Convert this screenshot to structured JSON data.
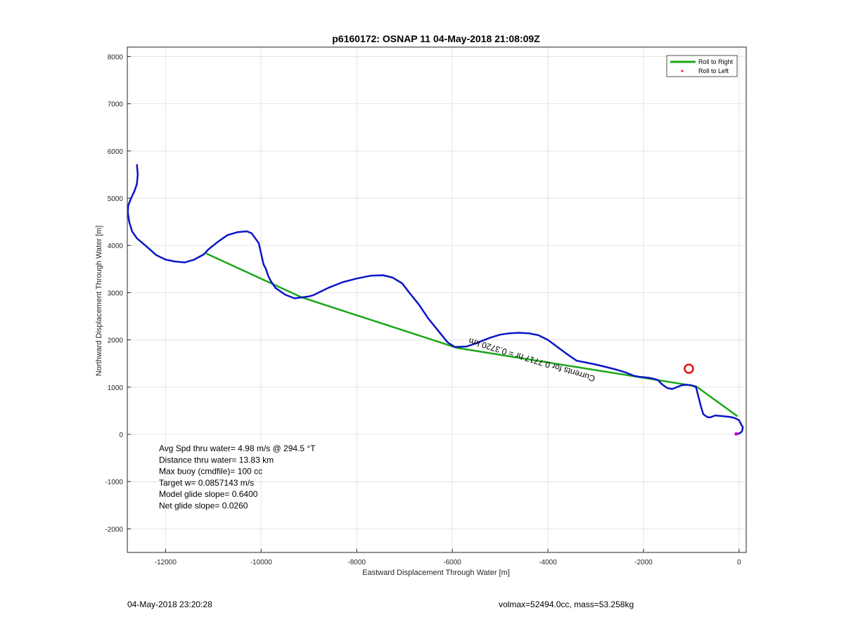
{
  "chart_data": {
    "type": "line",
    "title": "p6160172: OSNAP 11 04-May-2018 21:08:09Z",
    "xlabel": "Eastward Displacement Through Water [m]",
    "ylabel": "Northward Displacement Through Water [m]",
    "xlim": [
      -12800,
      150
    ],
    "ylim": [
      -2500,
      8200
    ],
    "xticks": [
      -12000,
      -10000,
      -8000,
      -6000,
      -4000,
      -2000,
      0
    ],
    "yticks": [
      -2000,
      -1000,
      0,
      1000,
      2000,
      3000,
      4000,
      5000,
      6000,
      7000,
      8000
    ],
    "grid": true,
    "legend_position": "top-right",
    "legend": [
      {
        "label": "Roll to Right",
        "color": "#1aa61a",
        "style": "line"
      },
      {
        "label": "Roll to Left",
        "color": "#e01010",
        "style": "dot"
      }
    ],
    "series": [
      {
        "color": "#0a14c8",
        "x": [
          -12600,
          -12580,
          -12600,
          -12650,
          -12720,
          -12780,
          -12790,
          -12760,
          -12700,
          -12600,
          -12400,
          -12200,
          -12000,
          -11800,
          -11600,
          -11400,
          -11200,
          -11100,
          -10900,
          -10700,
          -10500,
          -10300,
          -10200,
          -10050,
          -9950,
          -9900,
          -9850,
          -9800,
          -9700,
          -9500,
          -9300,
          -9150,
          -9000,
          -8900,
          -8600,
          -8300,
          -8000,
          -7700,
          -7450,
          -7250,
          -7050,
          -6900,
          -6700,
          -6500,
          -6300,
          -6100,
          -5950,
          -5700,
          -5500,
          -5200,
          -5000,
          -4800,
          -4600,
          -4400,
          -4200,
          -4000,
          -3800,
          -3600,
          -3400,
          -3200,
          -3000,
          -2800,
          -2600,
          -2400,
          -2200,
          -2100,
          -1900,
          -1800,
          -1700,
          -1600,
          -1500,
          -1400,
          -1300,
          -1200,
          -1100,
          -1000,
          -900,
          -850,
          -800,
          -750,
          -700,
          -650,
          -600,
          -550,
          -500,
          -400,
          -200,
          -100,
          0,
          50,
          80,
          60,
          20,
          -50,
          -80
        ],
        "y": [
          5720,
          5500,
          5300,
          5150,
          5000,
          4850,
          4700,
          4500,
          4300,
          4150,
          3980,
          3800,
          3700,
          3660,
          3640,
          3700,
          3810,
          3920,
          4080,
          4220,
          4280,
          4300,
          4260,
          4050,
          3600,
          3500,
          3350,
          3250,
          3100,
          2960,
          2880,
          2900,
          2920,
          2950,
          3100,
          3220,
          3300,
          3360,
          3370,
          3320,
          3200,
          3000,
          2750,
          2450,
          2200,
          1950,
          1850,
          1860,
          1930,
          2050,
          2110,
          2140,
          2150,
          2140,
          2100,
          2000,
          1850,
          1700,
          1560,
          1520,
          1480,
          1430,
          1380,
          1320,
          1240,
          1220,
          1200,
          1180,
          1150,
          1050,
          980,
          960,
          1000,
          1040,
          1050,
          1040,
          1000,
          800,
          600,
          430,
          390,
          360,
          360,
          380,
          400,
          390,
          370,
          350,
          300,
          200,
          150,
          60,
          30,
          0,
          10
        ]
      },
      {
        "name": "Roll to Right",
        "color": "#1aa61a",
        "x": [
          -11150,
          -9150,
          -5900,
          -900,
          -30
        ],
        "y": [
          3830,
          2900,
          1830,
          1020,
          380
        ]
      }
    ],
    "marker": {
      "x": -1050,
      "y": 1390,
      "color": "#e01010"
    },
    "current_label": "Currents for 0.7717 hr = 0.3720 km",
    "stats": [
      "Avg Spd thru water=  4.98 m/s @ 294.5 °T",
      "Distance thru water= 13.83 km",
      "Max buoy (cmdfile)= 100 cc",
      "Target w= 0.0857143 m/s",
      "Model glide slope= 0.6400",
      "Net glide slope= 0.0260"
    ]
  },
  "footer": {
    "left": "04-May-2018 23:20:28",
    "right": "volmax=52494.0cc, mass=53.258kg"
  }
}
